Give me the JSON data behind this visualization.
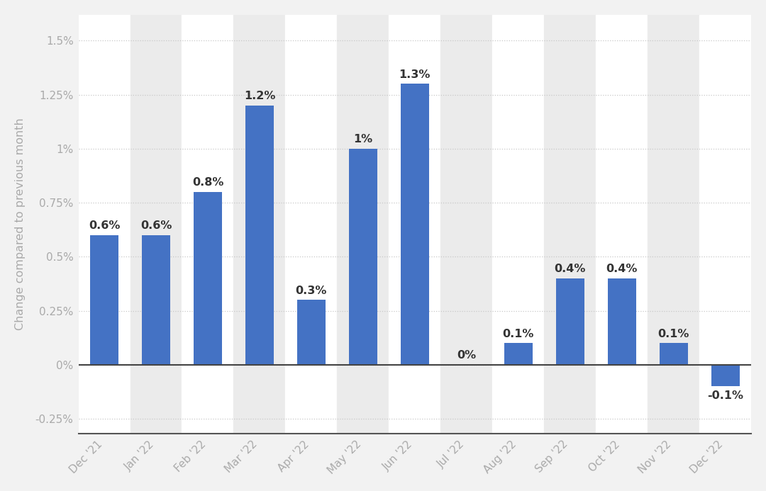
{
  "categories": [
    "Dec '21",
    "Jan '22",
    "Feb '22",
    "Mar '22",
    "Apr '22",
    "May '22",
    "Jun '22",
    "Jul '22",
    "Aug '22",
    "Sep '22",
    "Oct '22",
    "Nov '22",
    "Dec '22"
  ],
  "values": [
    0.6,
    0.6,
    0.8,
    1.2,
    0.3,
    1.0,
    1.3,
    0.0,
    0.1,
    0.4,
    0.4,
    0.1,
    -0.1
  ],
  "labels": [
    "0.6%",
    "0.6%",
    "0.8%",
    "1.2%",
    "0.3%",
    "1%",
    "1.3%",
    "0%",
    "0.1%",
    "0.4%",
    "0.4%",
    "0.1%",
    "-0.1%"
  ],
  "bar_color": "#4472c4",
  "ylabel": "Change compared to previous month",
  "ylim": [
    -0.32,
    1.62
  ],
  "yticks": [
    -0.25,
    0.0,
    0.25,
    0.5,
    0.75,
    1.0,
    1.25,
    1.5
  ],
  "ytick_labels": [
    "-0.25%",
    "0%",
    "0.25%",
    "0.5%",
    "0.75%",
    "1%",
    "1.25%",
    "1.5%"
  ],
  "background_color": "#f2f2f2",
  "plot_background_color": "#ffffff",
  "col_band_color_light": "#ffffff",
  "col_band_color_dark": "#ebebeb",
  "grid_color": "#c8c8c8",
  "label_fontsize": 11.5,
  "tick_fontsize": 11,
  "ylabel_fontsize": 11.5,
  "label_color": "#333333",
  "tick_color": "#aaaaaa"
}
